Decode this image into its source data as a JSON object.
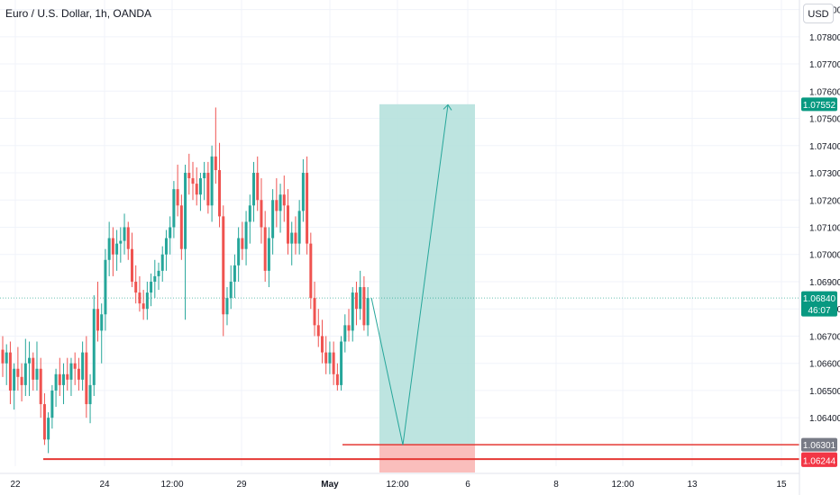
{
  "header": {
    "title": "Euro / U.S. Dollar, 1h, OANDA",
    "currency_button": "USD"
  },
  "colors": {
    "up": "#26a69a",
    "down": "#ef5350",
    "grid": "#f0f3fa",
    "axis_text": "#131722",
    "profit_zone": "#b2dfdb",
    "loss_zone": "#f9b7b5",
    "level_line": "#e53935",
    "current_price": "#089981",
    "target_price": "#089981",
    "entry_price": "#787b86",
    "stop_price": "#f23645"
  },
  "chart_data": {
    "type": "candlestick",
    "title": "Euro / U.S. Dollar, 1h, OANDA",
    "ylim": [
      1.06222,
      1.07935
    ],
    "y_ticks": [
      1.079,
      1.078,
      1.077,
      1.076,
      1.075,
      1.074,
      1.073,
      1.072,
      1.071,
      1.07,
      1.069,
      1.068,
      1.067,
      1.066,
      1.065,
      1.064
    ],
    "y_tick_labels": [
      "1.07900",
      "1.07800",
      "1.07700",
      "1.07600",
      "1.07500",
      "1.07400",
      "1.07300",
      "1.07200",
      "1.07100",
      "1.07000",
      "1.06900",
      "1.06800",
      "1.06700",
      "1.06600",
      "1.06500",
      "1.06400"
    ],
    "x_tick_labels": [
      "22",
      "24",
      "12:00",
      "29",
      "May",
      "12:00",
      "6",
      "8",
      "12:00",
      "13",
      "15"
    ],
    "candles": [
      [
        1.0665,
        1.067,
        1.0655,
        1.066
      ],
      [
        1.066,
        1.0667,
        1.0652,
        1.0664
      ],
      [
        1.0664,
        1.0668,
        1.0645,
        1.065
      ],
      [
        1.065,
        1.066,
        1.0643,
        1.0658
      ],
      [
        1.0658,
        1.0666,
        1.065,
        1.0655
      ],
      [
        1.0655,
        1.066,
        1.0646,
        1.0652
      ],
      [
        1.0652,
        1.0669,
        1.0648,
        1.066
      ],
      [
        1.066,
        1.0668,
        1.0648,
        1.0662
      ],
      [
        1.0662,
        1.0664,
        1.065,
        1.0654
      ],
      [
        1.0654,
        1.0668,
        1.065,
        1.0658
      ],
      [
        1.0658,
        1.0662,
        1.064,
        1.0645
      ],
      [
        1.0645,
        1.0649,
        1.063,
        1.0632
      ],
      [
        1.0632,
        1.0642,
        1.0627,
        1.064
      ],
      [
        1.064,
        1.0652,
        1.0636,
        1.065
      ],
      [
        1.065,
        1.0658,
        1.0644,
        1.0656
      ],
      [
        1.0656,
        1.0662,
        1.0648,
        1.0652
      ],
      [
        1.0652,
        1.066,
        1.0645,
        1.0656
      ],
      [
        1.0656,
        1.0662,
        1.065,
        1.0654
      ],
      [
        1.0654,
        1.0662,
        1.0648,
        1.066
      ],
      [
        1.066,
        1.0664,
        1.0652,
        1.0658
      ],
      [
        1.0658,
        1.0662,
        1.065,
        1.0654
      ],
      [
        1.0654,
        1.0668,
        1.065,
        1.0664
      ],
      [
        1.0664,
        1.067,
        1.064,
        1.0645
      ],
      [
        1.0645,
        1.0656,
        1.0638,
        1.0652
      ],
      [
        1.0652,
        1.0685,
        1.0648,
        1.068
      ],
      [
        1.068,
        1.069,
        1.0668,
        1.0672
      ],
      [
        1.0672,
        1.0682,
        1.066,
        1.0678
      ],
      [
        1.0678,
        1.0702,
        1.0672,
        1.0698
      ],
      [
        1.0698,
        1.0712,
        1.0692,
        1.0706
      ],
      [
        1.0706,
        1.071,
        1.0692,
        1.07
      ],
      [
        1.07,
        1.0709,
        1.0694,
        1.0704
      ],
      [
        1.0704,
        1.071,
        1.0697,
        1.0705
      ],
      [
        1.0705,
        1.0715,
        1.07,
        1.071
      ],
      [
        1.071,
        1.0712,
        1.0698,
        1.0702
      ],
      [
        1.0702,
        1.0708,
        1.0688,
        1.069
      ],
      [
        1.069,
        1.0696,
        1.0682,
        1.0686
      ],
      [
        1.0686,
        1.0692,
        1.0679,
        1.0682
      ],
      [
        1.0682,
        1.0687,
        1.0676,
        1.068
      ],
      [
        1.068,
        1.069,
        1.0676,
        1.0686
      ],
      [
        1.0686,
        1.0693,
        1.0681,
        1.069
      ],
      [
        1.069,
        1.0698,
        1.0684,
        1.0692
      ],
      [
        1.0692,
        1.0697,
        1.0687,
        1.0694
      ],
      [
        1.0694,
        1.0703,
        1.069,
        1.07
      ],
      [
        1.07,
        1.0709,
        1.0694,
        1.0706
      ],
      [
        1.0706,
        1.0714,
        1.07,
        1.071
      ],
      [
        1.071,
        1.0727,
        1.0706,
        1.0724
      ],
      [
        1.0724,
        1.0733,
        1.0714,
        1.0718
      ],
      [
        1.0718,
        1.0722,
        1.0698,
        1.0702
      ],
      [
        1.0702,
        1.0733,
        1.0676,
        1.073
      ],
      [
        1.073,
        1.0737,
        1.0722,
        1.0728
      ],
      [
        1.0728,
        1.0734,
        1.072,
        1.0726
      ],
      [
        1.0726,
        1.0732,
        1.0718,
        1.0722
      ],
      [
        1.0722,
        1.073,
        1.0716,
        1.0728
      ],
      [
        1.0728,
        1.0734,
        1.072,
        1.073
      ],
      [
        1.073,
        1.0734,
        1.0715,
        1.0718
      ],
      [
        1.0718,
        1.074,
        1.0712,
        1.0736
      ],
      [
        1.0736,
        1.0754,
        1.0726,
        1.0731
      ],
      [
        1.0731,
        1.0741,
        1.071,
        1.0714
      ],
      [
        1.0714,
        1.0718,
        1.067,
        1.0678
      ],
      [
        1.0678,
        1.0688,
        1.0674,
        1.0684
      ],
      [
        1.0684,
        1.0696,
        1.068,
        1.069
      ],
      [
        1.069,
        1.07,
        1.0684,
        1.0696
      ],
      [
        1.0696,
        1.071,
        1.069,
        1.0706
      ],
      [
        1.0706,
        1.0712,
        1.0698,
        1.0702
      ],
      [
        1.0702,
        1.0716,
        1.0696,
        1.0712
      ],
      [
        1.0712,
        1.0722,
        1.0704,
        1.0718
      ],
      [
        1.0718,
        1.0734,
        1.0712,
        1.073
      ],
      [
        1.073,
        1.0736,
        1.0716,
        1.072
      ],
      [
        1.072,
        1.0728,
        1.0704,
        1.071
      ],
      [
        1.071,
        1.0716,
        1.069,
        1.0694
      ],
      [
        1.0694,
        1.071,
        1.0688,
        1.0706
      ],
      [
        1.0706,
        1.0724,
        1.07,
        1.072
      ],
      [
        1.072,
        1.0728,
        1.071,
        1.0716
      ],
      [
        1.0716,
        1.0726,
        1.0708,
        1.0722
      ],
      [
        1.0722,
        1.0729,
        1.0712,
        1.0718
      ],
      [
        1.0718,
        1.0724,
        1.07,
        1.0704
      ],
      [
        1.0704,
        1.0712,
        1.0696,
        1.0708
      ],
      [
        1.0708,
        1.0714,
        1.07,
        1.0704
      ],
      [
        1.0704,
        1.072,
        1.07,
        1.0716
      ],
      [
        1.0716,
        1.0735,
        1.0712,
        1.073
      ],
      [
        1.073,
        1.0736,
        1.07,
        1.0704
      ],
      [
        1.0704,
        1.0708,
        1.068,
        1.0684
      ],
      [
        1.0684,
        1.069,
        1.067,
        1.0674
      ],
      [
        1.0674,
        1.068,
        1.0666,
        1.067
      ],
      [
        1.067,
        1.0676,
        1.066,
        1.0664
      ],
      [
        1.0664,
        1.067,
        1.0656,
        1.066
      ],
      [
        1.066,
        1.0668,
        1.0656,
        1.0664
      ],
      [
        1.0664,
        1.0668,
        1.0652,
        1.0656
      ],
      [
        1.0656,
        1.066,
        1.065,
        1.0652
      ],
      [
        1.0652,
        1.067,
        1.065,
        1.0668
      ],
      [
        1.0668,
        1.0678,
        1.0664,
        1.0674
      ],
      [
        1.0674,
        1.068,
        1.0668,
        1.0672
      ],
      [
        1.0672,
        1.0688,
        1.0668,
        1.0686
      ],
      [
        1.0686,
        1.069,
        1.0674,
        1.068
      ],
      [
        1.068,
        1.0694,
        1.0676,
        1.0688
      ],
      [
        1.0688,
        1.0692,
        1.0672,
        1.0674
      ],
      [
        1.0674,
        1.0688,
        1.067,
        1.0684
      ]
    ],
    "position": {
      "type": "long",
      "target_price": 1.07552,
      "entry_price": 1.06301,
      "stop_price": 1.06244,
      "target_label": "1.07552",
      "entry_label": "1.06301",
      "stop_label": "1.06244",
      "projection": [
        1.0684,
        1.063,
        1.0755
      ]
    },
    "horizontal_lines": [
      1.06301,
      1.06301
    ],
    "current_price": {
      "value": 1.0684,
      "label": "1.06840",
      "countdown": "46:07"
    }
  }
}
